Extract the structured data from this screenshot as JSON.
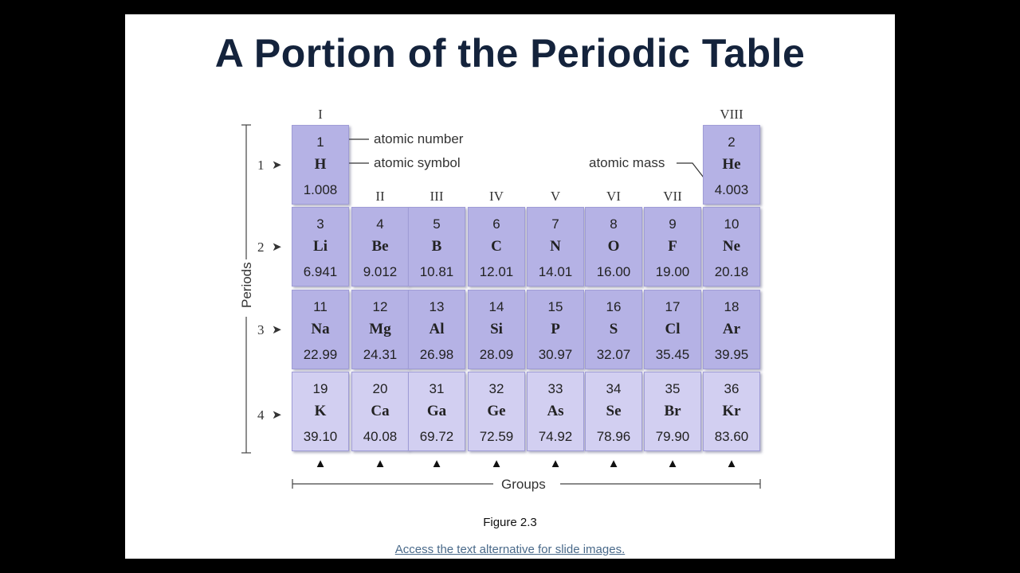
{
  "title": "A Portion of the Periodic Table",
  "group_labels": [
    "I",
    "II",
    "III",
    "IV",
    "V",
    "VI",
    "VII",
    "VIII"
  ],
  "period_labels": [
    "1",
    "2",
    "3",
    "4"
  ],
  "axis_labels": {
    "periods": "Periods",
    "groups": "Groups"
  },
  "callouts": {
    "atomic_number": "atomic number",
    "atomic_symbol": "atomic symbol",
    "atomic_mass": "atomic mass"
  },
  "elements": [
    {
      "n": "1",
      "s": "H",
      "m": "1.008"
    },
    {
      "n": "2",
      "s": "He",
      "m": "4.003"
    },
    {
      "n": "3",
      "s": "Li",
      "m": "6.941"
    },
    {
      "n": "4",
      "s": "Be",
      "m": "9.012"
    },
    {
      "n": "5",
      "s": "B",
      "m": "10.81"
    },
    {
      "n": "6",
      "s": "C",
      "m": "12.01"
    },
    {
      "n": "7",
      "s": "N",
      "m": "14.01"
    },
    {
      "n": "8",
      "s": "O",
      "m": "16.00"
    },
    {
      "n": "9",
      "s": "F",
      "m": "19.00"
    },
    {
      "n": "10",
      "s": "Ne",
      "m": "20.18"
    },
    {
      "n": "11",
      "s": "Na",
      "m": "22.99"
    },
    {
      "n": "12",
      "s": "Mg",
      "m": "24.31"
    },
    {
      "n": "13",
      "s": "Al",
      "m": "26.98"
    },
    {
      "n": "14",
      "s": "Si",
      "m": "28.09"
    },
    {
      "n": "15",
      "s": "P",
      "m": "30.97"
    },
    {
      "n": "16",
      "s": "S",
      "m": "32.07"
    },
    {
      "n": "17",
      "s": "Cl",
      "m": "35.45"
    },
    {
      "n": "18",
      "s": "Ar",
      "m": "39.95"
    },
    {
      "n": "19",
      "s": "K",
      "m": "39.10"
    },
    {
      "n": "20",
      "s": "Ca",
      "m": "40.08"
    },
    {
      "n": "31",
      "s": "Ga",
      "m": "69.72"
    },
    {
      "n": "32",
      "s": "Ge",
      "m": "72.59"
    },
    {
      "n": "33",
      "s": "As",
      "m": "74.92"
    },
    {
      "n": "34",
      "s": "Se",
      "m": "78.96"
    },
    {
      "n": "35",
      "s": "Br",
      "m": "79.90"
    },
    {
      "n": "36",
      "s": "Kr",
      "m": "83.60"
    }
  ],
  "caption": "Figure 2.3",
  "link": "Access the text alternative for slide images."
}
